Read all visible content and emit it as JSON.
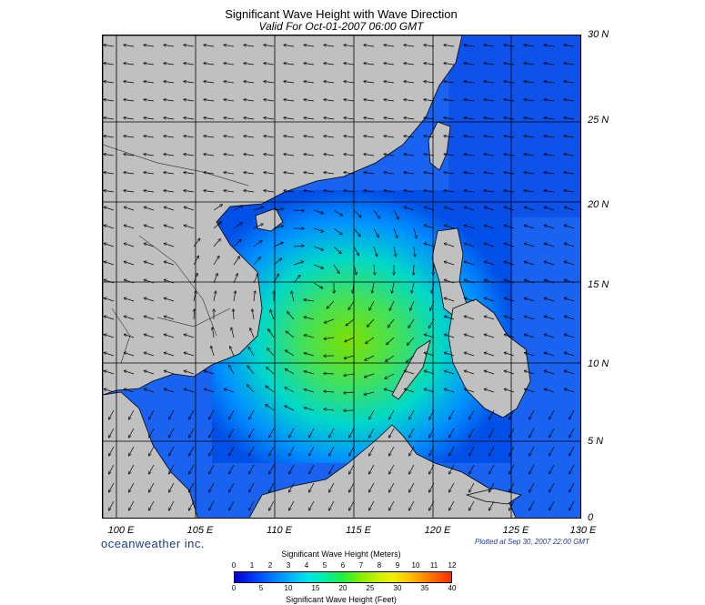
{
  "title": "Significant Wave Height with Wave Direction",
  "subtitle": "Valid For Oct-01-2007 06:00 GMT",
  "lat_labels": [
    "30 N",
    "25 N",
    "20 N",
    "15 N",
    "10 N",
    "5 N",
    "0"
  ],
  "lon_labels": [
    "100 E",
    "105 E",
    "110 E",
    "115 E",
    "120 E",
    "125 E",
    "130 E"
  ],
  "brand": "oceanweather inc.",
  "plotted": "Plotted at Sep 30, 2007 22:00 GMT",
  "colorbar": {
    "title_top": "Significant Wave Height (Meters)",
    "title_bottom": "Significant Wave Height (Feet)",
    "meters": [
      "0",
      "1",
      "2",
      "3",
      "4",
      "5",
      "6",
      "7",
      "8",
      "9",
      "10",
      "11",
      "12"
    ],
    "feet": [
      "0",
      "5",
      "10",
      "15",
      "20",
      "25",
      "30",
      "35",
      "40"
    ]
  },
  "colors": {
    "land": "#c0c0c0",
    "ocean": "#1e6ef5",
    "grid": "#000000"
  }
}
